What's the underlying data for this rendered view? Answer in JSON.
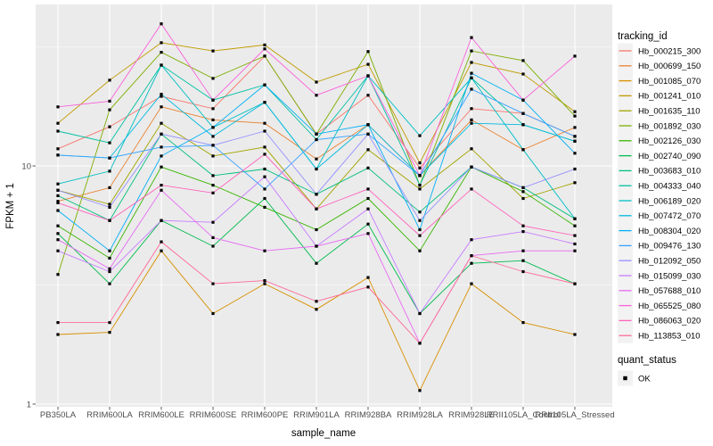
{
  "figure": {
    "xlabel": "sample_name",
    "ylabel": "FPKM + 1",
    "panel_bg": "#EBEBEB",
    "grid_color": "#FFFFFF",
    "tick_text_color": "#4D4D4D",
    "tick_mark_color": "#333333",
    "legend_key_bg": "#F2F2F2",
    "point_color": "#000000"
  },
  "legend": {
    "title": "tracking_id"
  },
  "legend2": {
    "title": "quant_status",
    "items": [
      {
        "label": "OK",
        "marker": "black-square"
      }
    ]
  },
  "chart_data": {
    "type": "line",
    "xlabel": "sample_name",
    "ylabel": "FPKM + 1",
    "yscale": "log10",
    "ylim": [
      1,
      46
    ],
    "yticks": [
      1,
      10
    ],
    "y_tick_labels": [
      "1",
      "10"
    ],
    "y_minor_ticks": [
      3.162,
      31.623
    ],
    "grid": true,
    "legend_position": "right",
    "point_shape": "square",
    "categories": [
      "PB350LA",
      "RRIM600LA",
      "RRIM600LE",
      "RRIM600SE",
      "RRIM600PE",
      "RRIM901LA",
      "RRIM928BA",
      "RRIM928LA",
      "RRIM928LE",
      "RRII105LA_Control",
      "RRII105LA_Stressed"
    ],
    "series": [
      {
        "name": "Hb_000215_300",
        "color": "#F8766D",
        "values": [
          11.8,
          14.6,
          19.6,
          17.4,
          28.9,
          13.6,
          19.8,
          9.8,
          17.4,
          16.6,
          13.3
        ]
      },
      {
        "name": "Hb_000699_150",
        "color": "#EA8331",
        "values": [
          7.1,
          8.1,
          17.7,
          15.6,
          15.1,
          10.7,
          14.9,
          9.1,
          15.6,
          11.7,
          14.5
        ]
      },
      {
        "name": "Hb_001085_070",
        "color": "#D89000",
        "values": [
          1.96,
          2.0,
          4.4,
          2.4,
          3.2,
          2.5,
          3.4,
          1.14,
          3.2,
          2.2,
          1.96
        ]
      },
      {
        "name": "Hb_001241_010",
        "color": "#C09B00",
        "values": [
          15.1,
          22.9,
          32.9,
          30.4,
          32.2,
          22.5,
          26.7,
          10.3,
          27.2,
          24.3,
          16.9
        ]
      },
      {
        "name": "Hb_001635_110",
        "color": "#A3A500",
        "values": [
          7.9,
          6.9,
          15.1,
          11.0,
          12.0,
          6.6,
          11.7,
          8.0,
          11.8,
          7.3,
          8.5
        ]
      },
      {
        "name": "Hb_001892_030",
        "color": "#7CAE00",
        "values": [
          3.5,
          17.2,
          30.0,
          23.3,
          28.9,
          13.6,
          30.2,
          8.3,
          30.4,
          27.7,
          16.2
        ]
      },
      {
        "name": "Hb_002126_030",
        "color": "#39B600",
        "values": [
          5.6,
          4.1,
          9.9,
          8.3,
          6.7,
          5.4,
          7.3,
          4.4,
          9.9,
          7.8,
          5.6
        ]
      },
      {
        "name": "Hb_002740_090",
        "color": "#00BB4E",
        "values": [
          5.2,
          3.2,
          5.9,
          4.6,
          7.3,
          3.9,
          5.7,
          2.4,
          3.9,
          4.0,
          3.2
        ]
      },
      {
        "name": "Hb_003683_010",
        "color": "#00BF7D",
        "values": [
          7.5,
          5.9,
          13.6,
          9.1,
          9.7,
          7.6,
          9.8,
          6.4,
          9.9,
          8.1,
          6.0
        ]
      },
      {
        "name": "Hb_004333_040",
        "color": "#00C1A3",
        "values": [
          14.0,
          12.5,
          26.5,
          18.9,
          21.9,
          12.9,
          23.9,
          8.3,
          23.4,
          14.9,
          12.7
        ]
      },
      {
        "name": "Hb_006189_020",
        "color": "#00BFC4",
        "values": [
          8.4,
          9.5,
          26.5,
          14.5,
          18.5,
          9.7,
          23.9,
          13.4,
          23.4,
          11.7,
          6.0
        ]
      },
      {
        "name": "Hb_007472_070",
        "color": "#00BADE",
        "values": [
          11.1,
          10.8,
          20.0,
          13.3,
          18.5,
          9.7,
          14.9,
          9.1,
          15.1,
          14.9,
          12.7
        ]
      },
      {
        "name": "Hb_008304_020",
        "color": "#00B0F6",
        "values": [
          6.5,
          4.4,
          11.0,
          14.5,
          21.9,
          13.6,
          14.9,
          5.4,
          24.5,
          18.9,
          11.3
        ]
      },
      {
        "name": "Hb_009476_130",
        "color": "#35A2FF",
        "values": [
          11.1,
          10.8,
          12.0,
          12.2,
          8.0,
          12.9,
          13.6,
          9.1,
          21.0,
          16.6,
          13.3
        ]
      },
      {
        "name": "Hb_012092_050",
        "color": "#9590FF",
        "values": [
          7.9,
          6.7,
          13.6,
          12.2,
          14.0,
          7.6,
          13.6,
          5.9,
          9.9,
          8.1,
          9.7
        ]
      },
      {
        "name": "Hb_015099_030",
        "color": "#C77CFF",
        "values": [
          4.4,
          3.6,
          5.9,
          5.8,
          9.0,
          4.6,
          6.6,
          2.4,
          4.9,
          5.3,
          4.7
        ]
      },
      {
        "name": "Hb_057688_010",
        "color": "#E76BF3",
        "values": [
          4.9,
          3.7,
          7.9,
          5.0,
          4.4,
          4.6,
          5.2,
          1.8,
          4.2,
          4.4,
          4.4
        ]
      },
      {
        "name": "Hb_065525_080",
        "color": "#FA62DB",
        "values": [
          17.7,
          18.7,
          39.5,
          18.9,
          31.0,
          19.8,
          23.9,
          9.1,
          34.6,
          18.9,
          28.9
        ]
      },
      {
        "name": "Hb_086063_020",
        "color": "#FF62BC",
        "values": [
          7.0,
          5.9,
          8.3,
          7.7,
          11.2,
          6.6,
          8.0,
          5.1,
          8.0,
          5.6,
          5.1
        ]
      },
      {
        "name": "Hb_113853_010",
        "color": "#FF6A98",
        "values": [
          2.2,
          2.2,
          4.8,
          3.2,
          3.3,
          2.7,
          3.1,
          1.8,
          4.2,
          3.6,
          3.2
        ]
      }
    ]
  }
}
